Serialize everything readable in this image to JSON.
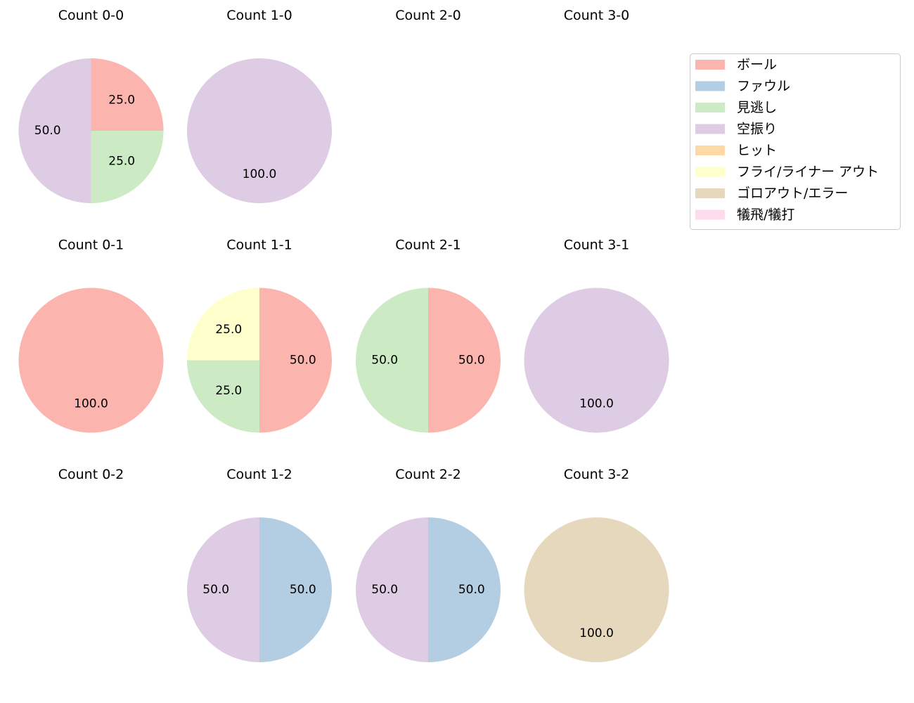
{
  "categories": [
    "ボール",
    "ファウル",
    "見逃し",
    "空振り",
    "ヒット",
    "フライ/ライナー アウト",
    "ゴロアウト/エラー",
    "犠飛/犠打"
  ],
  "colors": [
    "#fbb4ae",
    "#b3cde3",
    "#ccebc5",
    "#decbe4",
    "#fed9a6",
    "#ffffcc",
    "#e5d8bd",
    "#fddaec"
  ],
  "chart_data": {
    "type": "pie",
    "legend_position": "top-right",
    "charts": [
      {
        "title": "Count 0-0",
        "values": [
          25,
          0,
          25,
          50,
          0,
          0,
          0,
          0
        ],
        "labels": [
          "25.0",
          "",
          "25.0",
          "50.0",
          "",
          "",
          "",
          ""
        ]
      },
      {
        "title": "Count 1-0",
        "values": [
          0,
          0,
          0,
          100,
          0,
          0,
          0,
          0
        ],
        "labels": [
          "",
          "",
          "",
          "100.0",
          "",
          "",
          "",
          ""
        ]
      },
      {
        "title": "Count 2-0",
        "values": [
          0,
          0,
          0,
          0,
          0,
          0,
          0,
          0
        ],
        "labels": [
          "",
          "",
          "",
          "",
          "",
          "",
          "",
          ""
        ]
      },
      {
        "title": "Count 3-0",
        "values": [
          0,
          0,
          0,
          0,
          0,
          0,
          0,
          0
        ],
        "labels": [
          "",
          "",
          "",
          "",
          "",
          "",
          "",
          ""
        ]
      },
      {
        "title": "Count 0-1",
        "values": [
          100,
          0,
          0,
          0,
          0,
          0,
          0,
          0
        ],
        "labels": [
          "100.0",
          "",
          "",
          "",
          "",
          "",
          "",
          ""
        ]
      },
      {
        "title": "Count 1-1",
        "values": [
          50,
          0,
          25,
          0,
          0,
          25,
          0,
          0
        ],
        "labels": [
          "50.0",
          "",
          "25.0",
          "",
          "",
          "25.0",
          "",
          ""
        ]
      },
      {
        "title": "Count 2-1",
        "values": [
          50,
          0,
          50,
          0,
          0,
          0,
          0,
          0
        ],
        "labels": [
          "50.0",
          "",
          "50.0",
          "",
          "",
          "",
          "",
          ""
        ]
      },
      {
        "title": "Count 3-1",
        "values": [
          0,
          0,
          0,
          100,
          0,
          0,
          0,
          0
        ],
        "labels": [
          "",
          "",
          "",
          "100.0",
          "",
          "",
          "",
          ""
        ]
      },
      {
        "title": "Count 0-2",
        "values": [
          0,
          0,
          0,
          0,
          0,
          0,
          0,
          0
        ],
        "labels": [
          "",
          "",
          "",
          "",
          "",
          "",
          "",
          ""
        ]
      },
      {
        "title": "Count 1-2",
        "values": [
          0,
          50,
          0,
          50,
          0,
          0,
          0,
          0
        ],
        "labels": [
          "",
          "50.0",
          "",
          "50.0",
          "",
          "",
          "",
          ""
        ]
      },
      {
        "title": "Count 2-2",
        "values": [
          0,
          50,
          0,
          50,
          0,
          0,
          0,
          0
        ],
        "labels": [
          "",
          "50.0",
          "",
          "50.0",
          "",
          "",
          "",
          ""
        ]
      },
      {
        "title": "Count 3-2",
        "values": [
          0,
          0,
          0,
          0,
          0,
          0,
          100,
          0
        ],
        "labels": [
          "",
          "",
          "",
          "",
          "",
          "",
          "100.0",
          ""
        ]
      }
    ]
  }
}
